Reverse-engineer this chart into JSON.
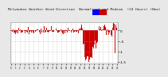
{
  "title": "Milwaukee Weather Wind Direction  Normalized and Median  (24 Hours) (New)",
  "title_fontsize": 3.2,
  "background_color": "#e8e8e8",
  "plot_bg_color": "#ffffff",
  "grid_color": "#aaaaaa",
  "bar_color": "#cc0000",
  "median_color": "#0000cc",
  "ylim_min": -1.6,
  "ylim_max": 0.4,
  "ytick_values": [
    -1.5,
    -1.0,
    -0.5,
    0.0
  ],
  "ytick_labels": [
    "-1.5",
    "-1",
    "-.5",
    "0"
  ],
  "n_points": 288,
  "seed": 42,
  "legend_blue": "#0000ff",
  "legend_red": "#cc0000"
}
